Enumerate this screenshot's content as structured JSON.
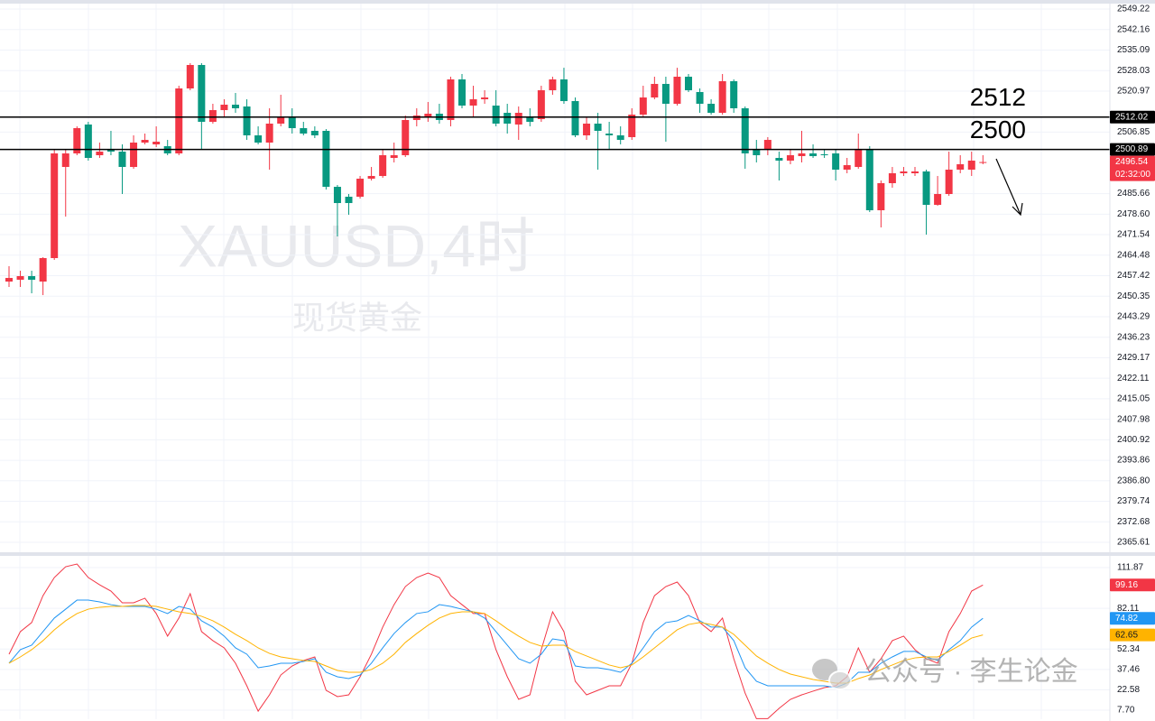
{
  "chart_data": [
    {
      "type": "candlestick",
      "title": "XAUUSD,4时",
      "subtitle": "现货黄金",
      "up_color": "#f23645",
      "down_color": "#089981",
      "open": [
        2455.39,
        2456.01,
        2457.26,
        2455.39,
        2463.47,
        2494.85,
        2499.51,
        2509.46,
        2498.89,
        2501.07,
        2500.13,
        2494.85,
        2503.24,
        2502.62,
        2502.0,
        2499.51,
        2521.88,
        2529.96,
        2510.39,
        2514.42,
        2516.29,
        2515.67,
        2505.73,
        2503.24,
        2509.77,
        2511.94,
        2508.21,
        2507.28,
        2507.28,
        2488.01,
        2484.6,
        2484.6,
        2490.81,
        2491.74,
        2497.96,
        2498.89,
        2511.01,
        2511.94,
        2513.18,
        2511.01,
        2524.99,
        2515.98,
        2518.15,
        2515.98,
        2513.49,
        2509.46,
        2511.94,
        2511.32,
        2521.26,
        2524.99,
        2517.53,
        2505.73,
        2509.77,
        2506.35,
        2505.73,
        2505.11,
        2512.87,
        2518.77,
        2523.44,
        2516.6,
        2525.92,
        2520.64,
        2516.6,
        2513.49,
        2524.37,
        2515.05,
        2501.07,
        2501.07,
        2497.96,
        2497.03,
        2498.58,
        2499.51,
        2499.2,
        2499.51,
        2493.92,
        2494.85,
        2501.07,
        2479.94,
        2489.26,
        2492.68,
        2492.68,
        2493.3,
        2481.8,
        2485.53,
        2493.92,
        2493.92,
        2496.4
      ],
      "high": [
        2460.68,
        2459.12,
        2459.12,
        2463.78,
        2501.07,
        2501.07,
        2508.83,
        2510.39,
        2503.24,
        2507.28,
        2502.62,
        2505.73,
        2506.35,
        2508.83,
        2504.17,
        2522.81,
        2530.58,
        2530.58,
        2516.6,
        2518.15,
        2520.33,
        2518.15,
        2508.83,
        2515.05,
        2519.71,
        2515.05,
        2510.39,
        2508.83,
        2507.9,
        2488.64,
        2485.53,
        2491.74,
        2494.85,
        2501.07,
        2503.24,
        2512.56,
        2515.05,
        2517.22,
        2516.6,
        2525.92,
        2526.85,
        2522.81,
        2521.26,
        2521.26,
        2516.6,
        2515.67,
        2515.05,
        2522.81,
        2525.92,
        2529.0,
        2518.77,
        2511.94,
        2513.49,
        2510.39,
        2508.83,
        2515.05,
        2522.81,
        2525.92,
        2525.92,
        2529.0,
        2526.85,
        2521.88,
        2518.15,
        2526.85,
        2524.99,
        2515.67,
        2504.17,
        2505.11,
        2500.13,
        2501.07,
        2507.28,
        2502.62,
        2501.07,
        2501.07,
        2497.96,
        2506.35,
        2502.0,
        2490.19,
        2494.85,
        2494.85,
        2494.85,
        2493.92,
        2491.74,
        2500.13,
        2498.89,
        2500.13,
        2498.89
      ],
      "low": [
        2453.53,
        2453.53,
        2451.35,
        2450.73,
        2462.85,
        2477.76,
        2498.89,
        2497.03,
        2497.96,
        2498.89,
        2485.53,
        2494.23,
        2502.62,
        2501.69,
        2498.89,
        2498.89,
        2521.26,
        2501.07,
        2509.77,
        2511.94,
        2513.49,
        2504.17,
        2502.62,
        2493.92,
        2508.83,
        2506.35,
        2505.73,
        2504.8,
        2487.08,
        2470.93,
        2478.38,
        2483.97,
        2490.19,
        2491.12,
        2496.4,
        2498.27,
        2508.83,
        2510.39,
        2509.77,
        2508.83,
        2515.05,
        2511.94,
        2516.6,
        2508.83,
        2506.35,
        2504.17,
        2508.83,
        2510.39,
        2519.71,
        2516.6,
        2505.11,
        2504.17,
        2493.92,
        2501.07,
        2502.62,
        2504.17,
        2511.94,
        2518.15,
        2503.55,
        2515.98,
        2520.64,
        2513.49,
        2512.87,
        2512.87,
        2513.49,
        2494.23,
        2496.4,
        2498.89,
        2490.19,
        2495.78,
        2496.4,
        2497.96,
        2497.96,
        2490.19,
        2492.68,
        2494.23,
        2479.32,
        2474.03,
        2487.7,
        2491.74,
        2491.74,
        2471.55,
        2481.49,
        2484.91,
        2492.68,
        2491.74,
        2495.78
      ],
      "close": [
        2456.63,
        2457.26,
        2456.01,
        2463.47,
        2499.51,
        2499.51,
        2508.21,
        2497.96,
        2500.13,
        2500.13,
        2494.85,
        2503.24,
        2504.17,
        2503.55,
        2499.51,
        2521.88,
        2529.96,
        2510.39,
        2514.42,
        2516.29,
        2515.05,
        2505.73,
        2503.24,
        2509.77,
        2511.94,
        2508.21,
        2506.35,
        2505.73,
        2488.01,
        2482.42,
        2482.42,
        2490.81,
        2491.74,
        2498.89,
        2498.89,
        2511.01,
        2512.56,
        2513.18,
        2511.01,
        2524.99,
        2515.98,
        2518.15,
        2518.77,
        2509.77,
        2509.77,
        2513.49,
        2510.39,
        2521.26,
        2524.99,
        2517.53,
        2505.73,
        2509.77,
        2507.28,
        2505.73,
        2504.17,
        2512.87,
        2518.77,
        2523.44,
        2516.6,
        2525.92,
        2521.26,
        2516.6,
        2513.49,
        2524.37,
        2515.05,
        2499.51,
        2498.89,
        2504.17,
        2497.03,
        2498.89,
        2499.51,
        2498.58,
        2498.89,
        2493.92,
        2495.47,
        2501.07,
        2479.94,
        2489.26,
        2492.68,
        2493.3,
        2493.3,
        2481.8,
        2485.53,
        2493.92,
        2495.78,
        2497.03,
        2496.54
      ],
      "countdown": "02:32:00",
      "hlines": [
        {
          "value": 2512.02,
          "label": "2512",
          "color": "#000000"
        },
        {
          "value": 2500.89,
          "label": "2500",
          "color": "#000000"
        }
      ],
      "ylim": [
        2362.19,
        2551.4
      ],
      "yticks": [
        2549.22,
        2542.16,
        2535.09,
        2528.03,
        2520.97,
        2506.85,
        2485.66,
        {
          "value": 2478.6,
          "label": "2478.60"
        },
        2471.54,
        2464.48,
        2457.42,
        2450.35,
        2443.29,
        2436.23,
        2429.17,
        2422.11,
        2415.05,
        2407.98,
        2400.92,
        2393.86,
        {
          "value": 2386.8,
          "label": "2386.80"
        },
        2379.74,
        2372.68,
        2365.61
      ],
      "grid": true
    },
    {
      "type": "line",
      "series": [
        {
          "color": "#f23645",
          "values": [
            48.6,
            65.1,
            71.7,
            91.4,
            104.6,
            112.5,
            114.5,
            104.6,
            99.3,
            94.7,
            86.2,
            86.2,
            89.5,
            78.3,
            61.8,
            75.0,
            92.8,
            65.1,
            58.5,
            53.2,
            42.0,
            25.5,
            7.0,
            18.9,
            33.4,
            40.0,
            44.0,
            46.6,
            22.2,
            17.6,
            18.9,
            32.1,
            48.6,
            68.4,
            84.8,
            98.0,
            104.6,
            107.9,
            104.6,
            91.4,
            84.8,
            78.3,
            78.3,
            51.9,
            32.1,
            15.6,
            18.9,
            51.9,
            79.6,
            65.1,
            28.8,
            18.9,
            22.2,
            25.5,
            25.5,
            42.0,
            71.7,
            91.4,
            98.0,
            101.3,
            91.4,
            71.7,
            65.1,
            75.0,
            45.3,
            20.2,
            1.5,
            1.5,
            9.0,
            15.6,
            18.9,
            21.6,
            24.2,
            25.5,
            32.1,
            53.2,
            35.4,
            45.3,
            58.5,
            61.8,
            51.9,
            45.3,
            42.0,
            65.1,
            78.3,
            94.7,
            99.16
          ]
        },
        {
          "color": "#2196f3",
          "values": [
            42.0,
            51.9,
            55.2,
            65.1,
            75.0,
            81.5,
            88.1,
            88.1,
            86.8,
            84.8,
            83.5,
            83.5,
            83.5,
            81.5,
            78.3,
            83.5,
            81.5,
            73.0,
            68.4,
            61.8,
            53.2,
            48.6,
            38.7,
            40.0,
            42.0,
            42.0,
            43.3,
            45.3,
            35.4,
            32.1,
            30.8,
            33.4,
            42.0,
            53.2,
            63.7,
            71.7,
            78.3,
            79.6,
            84.8,
            83.5,
            81.5,
            79.6,
            75.0,
            65.1,
            55.2,
            45.3,
            42.0,
            48.6,
            59.8,
            58.5,
            40.0,
            38.7,
            38.7,
            37.4,
            35.4,
            42.0,
            53.2,
            65.1,
            71.7,
            73.0,
            76.9,
            73.0,
            68.4,
            68.4,
            58.5,
            38.7,
            28.8,
            25.5,
            25.5,
            25.5,
            25.5,
            25.5,
            25.5,
            24.2,
            27.5,
            35.4,
            35.4,
            42.0,
            46.6,
            50.6,
            50.6,
            46.6,
            44.0,
            51.9,
            58.5,
            68.4,
            74.82
          ]
        },
        {
          "color": "#ffb300",
          "values": [
            42.0,
            46.6,
            51.9,
            58.5,
            66.4,
            73.0,
            78.3,
            81.5,
            82.9,
            83.5,
            83.5,
            84.2,
            84.2,
            83.5,
            81.5,
            79.6,
            78.3,
            76.3,
            73.0,
            68.4,
            63.1,
            58.5,
            53.2,
            49.2,
            46.6,
            45.3,
            44.0,
            43.3,
            40.0,
            36.7,
            35.4,
            35.4,
            37.4,
            42.0,
            48.6,
            57.2,
            63.7,
            69.7,
            75.0,
            78.3,
            79.6,
            79.6,
            78.3,
            73.0,
            67.1,
            61.8,
            57.2,
            54.5,
            55.2,
            55.2,
            50.6,
            47.3,
            44.0,
            40.7,
            38.7,
            40.7,
            46.6,
            53.2,
            59.8,
            66.4,
            70.3,
            71.7,
            70.3,
            68.4,
            63.1,
            55.2,
            47.3,
            42.0,
            37.4,
            34.1,
            32.1,
            30.1,
            28.8,
            27.5,
            27.5,
            30.8,
            33.4,
            37.4,
            40.7,
            44.0,
            45.9,
            46.6,
            46.6,
            50.6,
            55.2,
            60.4,
            62.65
          ]
        }
      ],
      "ylim": [
        1.11,
        120.44
      ],
      "yticks": [
        111.87,
        82.11,
        52.34,
        37.46,
        22.58,
        {
          "value": 7.7,
          "label": "7.70"
        }
      ],
      "grid": true
    }
  ],
  "watermark": "公众号 · 李生论金"
}
